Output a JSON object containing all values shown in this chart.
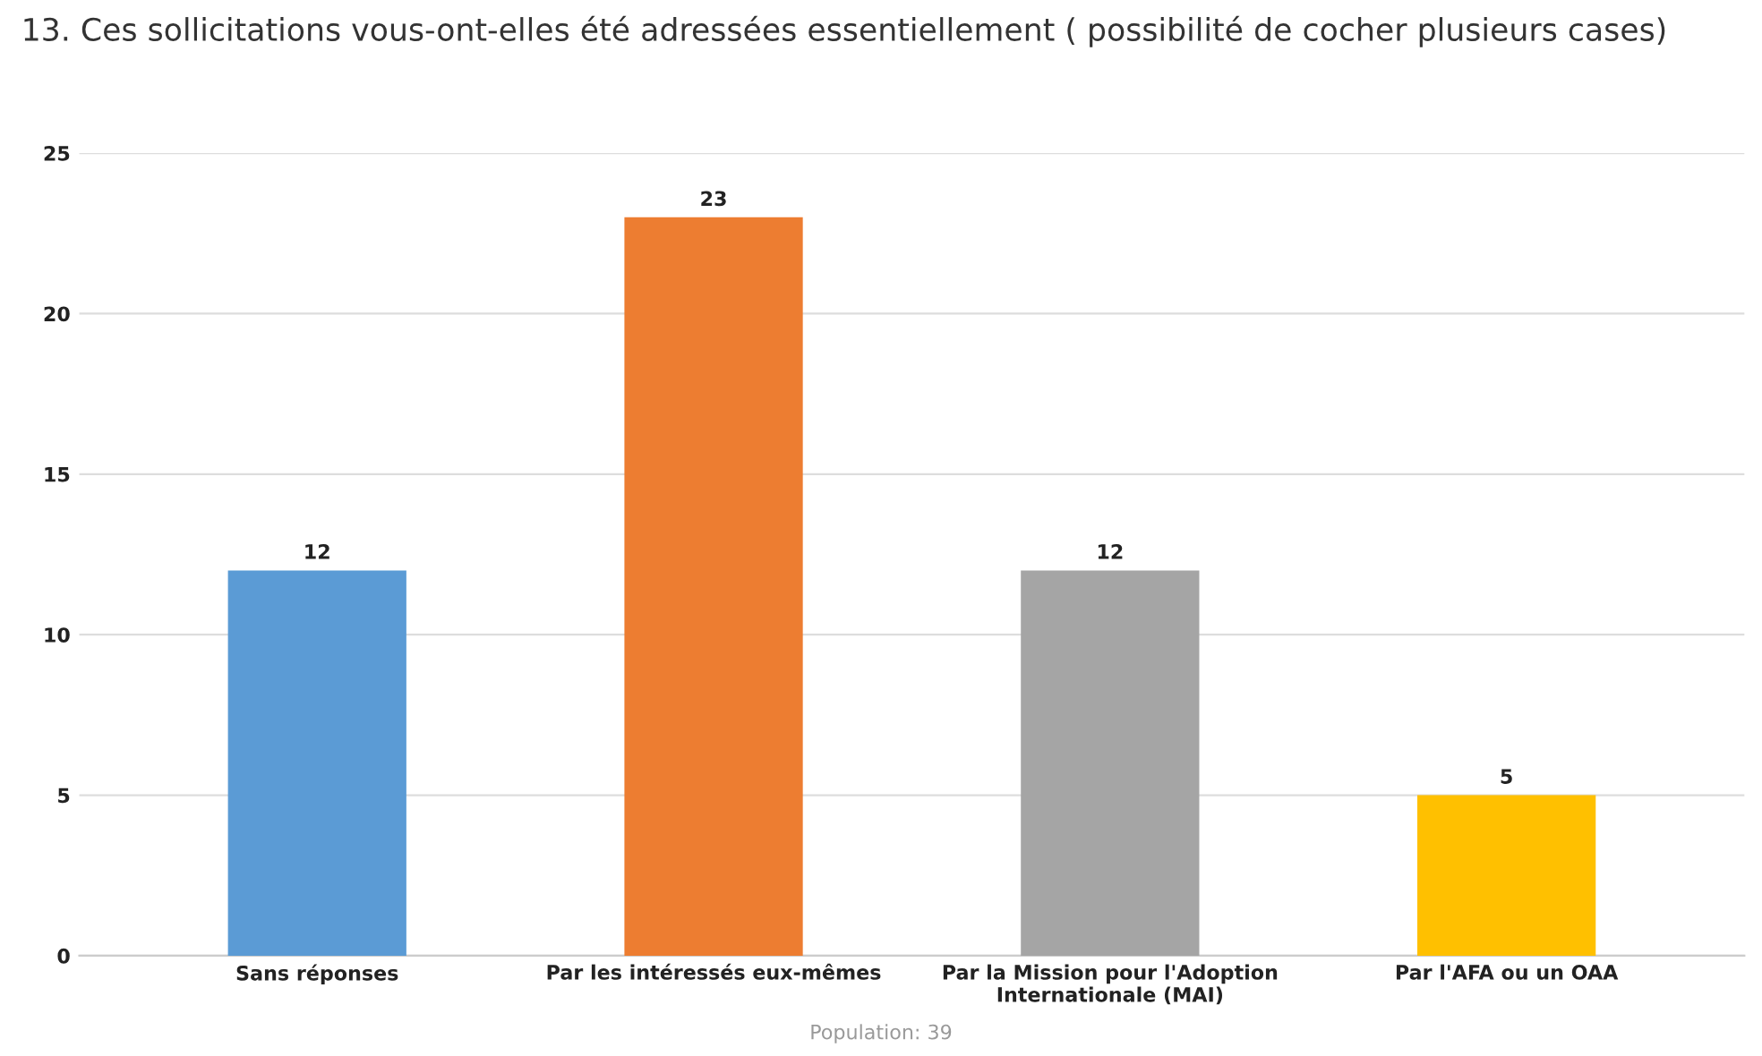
{
  "chart_data": {
    "type": "bar",
    "title": "13. Ces sollicitations vous-ont-elles été adressées essentiellement ( possibilité de cocher plusieurs cases)",
    "categories": [
      "Sans réponses",
      "Par les intéressés eux-mêmes",
      "Par la Mission pour l'Adoption\nInternationale (MAI)",
      "Par l'AFA ou un OAA"
    ],
    "values": [
      12,
      23,
      12,
      5
    ],
    "colors": [
      "#5b9bd5",
      "#ed7d31",
      "#a5a5a5",
      "#ffc000"
    ],
    "ylim": [
      0,
      25
    ],
    "yticks": [
      0,
      5,
      10,
      15,
      20,
      25
    ],
    "grid": "y",
    "data_labels": true,
    "annotations": [
      "Population: 39"
    ]
  }
}
